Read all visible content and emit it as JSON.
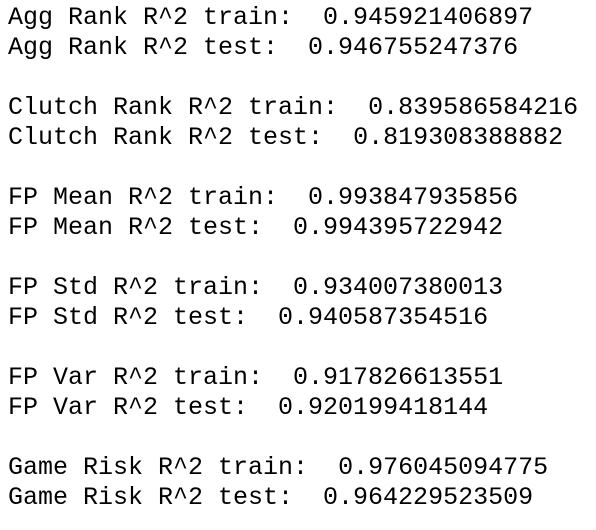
{
  "groups": [
    {
      "lines": [
        {
          "label": "Agg Rank R^2 train:",
          "value": "0.945921406897"
        },
        {
          "label": "Agg Rank R^2 test:",
          "value": "0.946755247376"
        }
      ]
    },
    {
      "lines": [
        {
          "label": "Clutch Rank R^2 train:",
          "value": "0.839586584216"
        },
        {
          "label": "Clutch Rank R^2 test:",
          "value": "0.819308388882"
        }
      ]
    },
    {
      "lines": [
        {
          "label": "FP Mean R^2 train:",
          "value": "0.993847935856"
        },
        {
          "label": "FP Mean R^2 test:",
          "value": "0.994395722942"
        }
      ]
    },
    {
      "lines": [
        {
          "label": "FP Std R^2 train:",
          "value": "0.934007380013"
        },
        {
          "label": "FP Std R^2 test:",
          "value": "0.940587354516"
        }
      ]
    },
    {
      "lines": [
        {
          "label": "FP Var R^2 train:",
          "value": "0.917826613551"
        },
        {
          "label": "FP Var R^2 test:",
          "value": "0.920199418144"
        }
      ]
    },
    {
      "lines": [
        {
          "label": "Game Risk R^2 train:",
          "value": "0.976045094775"
        },
        {
          "label": "Game Risk R^2 test:",
          "value": "0.964229523509"
        }
      ]
    }
  ]
}
